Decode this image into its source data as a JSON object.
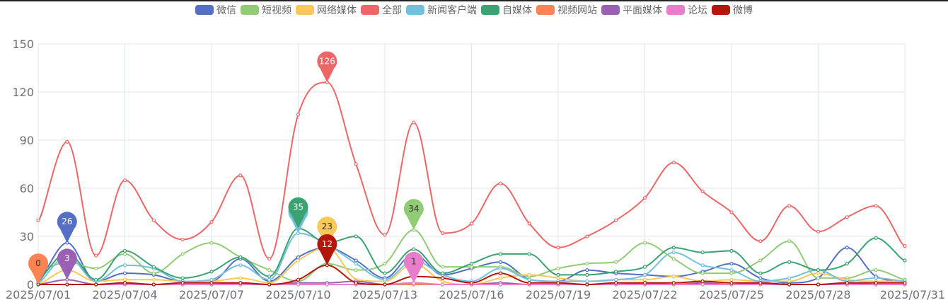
{
  "chart_data": {
    "type": "line",
    "title": "",
    "xlabel": "",
    "ylabel": "",
    "ylim": [
      0,
      150
    ],
    "yticks": [
      0,
      30,
      60,
      90,
      120,
      150
    ],
    "grid": true,
    "legend_position": "top",
    "smooth": true,
    "x": [
      "2025/07/01",
      "2025/07/02",
      "2025/07/03",
      "2025/07/04",
      "2025/07/05",
      "2025/07/06",
      "2025/07/07",
      "2025/07/08",
      "2025/07/09",
      "2025/07/10",
      "2025/07/11",
      "2025/07/12",
      "2025/07/13",
      "2025/07/14",
      "2025/07/15",
      "2025/07/16",
      "2025/07/17",
      "2025/07/18",
      "2025/07/19",
      "2025/07/20",
      "2025/07/21",
      "2025/07/22",
      "2025/07/23",
      "2025/07/24",
      "2025/07/25",
      "2025/07/26",
      "2025/07/27",
      "2025/07/28",
      "2025/07/29",
      "2025/07/30",
      "2025/07/31"
    ],
    "xtick_labels": [
      "2025/07/01",
      "2025/07/04",
      "2025/07/07",
      "2025/07/10",
      "2025/07/13",
      "2025/07/16",
      "2025/07/19",
      "2025/07/22",
      "2025/07/25",
      "2025/07/28",
      "2025/07/31"
    ],
    "series": [
      {
        "name": "微信",
        "color": "#5470c6",
        "max_label": "26",
        "max_index": 1,
        "values": [
          2,
          26,
          2,
          7,
          6,
          2,
          2,
          16,
          2,
          17,
          23,
          15,
          4,
          19,
          6,
          10,
          14,
          3,
          2,
          9,
          7,
          6,
          5,
          8,
          13,
          4,
          1,
          4,
          23,
          5,
          2
        ]
      },
      {
        "name": "短视频",
        "color": "#91cc75",
        "max_label": "34",
        "max_index": 13,
        "values": [
          8,
          14,
          10,
          19,
          7,
          19,
          26,
          17,
          9,
          2,
          13,
          9,
          13,
          34,
          11,
          11,
          11,
          5,
          10,
          13,
          14,
          26,
          16,
          7,
          7,
          15,
          27,
          4,
          4,
          9,
          3
        ]
      },
      {
        "name": "网络媒体",
        "color": "#fac858",
        "max_label": "23",
        "max_index": 10,
        "values": [
          0,
          9,
          2,
          3,
          3,
          2,
          2,
          4,
          1,
          15,
          23,
          3,
          2,
          13,
          2,
          0,
          4,
          6,
          4,
          2,
          3,
          3,
          5,
          2,
          3,
          2,
          2,
          7,
          3,
          2,
          2
        ]
      },
      {
        "name": "全部",
        "color": "#ee6666",
        "max_label": "126",
        "max_index": 10,
        "values": [
          40,
          89,
          18,
          65,
          40,
          28,
          39,
          68,
          16,
          106,
          126,
          75,
          31,
          101,
          32,
          38,
          63,
          38,
          23,
          30,
          40,
          54,
          76,
          58,
          45,
          27,
          49,
          33,
          42,
          49,
          24
        ]
      },
      {
        "name": "新闻客户端",
        "color": "#73c0de",
        "max_label": "32",
        "max_index": 9,
        "values": [
          1,
          18,
          2,
          12,
          10,
          2,
          3,
          12,
          3,
          32,
          25,
          13,
          3,
          15,
          6,
          2,
          10,
          3,
          2,
          2,
          3,
          6,
          20,
          12,
          9,
          2,
          4,
          9,
          2,
          4,
          2
        ]
      },
      {
        "name": "自媒体",
        "color": "#3ba272",
        "max_label": "35",
        "max_index": 9,
        "values": [
          3,
          20,
          3,
          21,
          11,
          4,
          8,
          17,
          5,
          35,
          26,
          30,
          7,
          22,
          7,
          13,
          19,
          19,
          6,
          6,
          8,
          11,
          23,
          20,
          21,
          7,
          14,
          9,
          13,
          29,
          15
        ]
      },
      {
        "name": "视频网站",
        "color": "#fc8452",
        "max_label": "0",
        "max_index": 0,
        "values": [
          0,
          0,
          0,
          0,
          0,
          0,
          0,
          0,
          0,
          0,
          0,
          0,
          0,
          0,
          0,
          0,
          0,
          0,
          0,
          0,
          0,
          0,
          0,
          0,
          0,
          0,
          0,
          0,
          0,
          0,
          0
        ]
      },
      {
        "name": "平面媒体",
        "color": "#9a60b4",
        "max_label": "3",
        "max_index": 1,
        "values": [
          0,
          3,
          0,
          1,
          0,
          0,
          0,
          1,
          0,
          1,
          1,
          2,
          0,
          1,
          0,
          0,
          1,
          0,
          0,
          0,
          0,
          1,
          0,
          1,
          0,
          1,
          0,
          0,
          1,
          0,
          0
        ]
      },
      {
        "name": "论坛",
        "color": "#ea7ccc",
        "max_label": "1",
        "max_index": 13,
        "values": [
          0,
          0,
          0,
          0,
          0,
          0,
          0,
          0,
          0,
          0,
          0,
          0,
          0,
          1,
          0,
          0,
          0,
          0,
          0,
          0,
          0,
          0,
          0,
          0,
          0,
          0,
          0,
          0,
          0,
          0,
          0
        ]
      },
      {
        "name": "微博",
        "color": "#b2170a",
        "max_label": "12",
        "max_index": 10,
        "values": [
          0,
          0,
          0,
          1,
          0,
          1,
          1,
          1,
          0,
          3,
          12,
          1,
          0,
          5,
          4,
          1,
          7,
          1,
          1,
          0,
          1,
          1,
          1,
          2,
          1,
          1,
          0,
          0,
          1,
          1,
          1
        ]
      }
    ]
  }
}
